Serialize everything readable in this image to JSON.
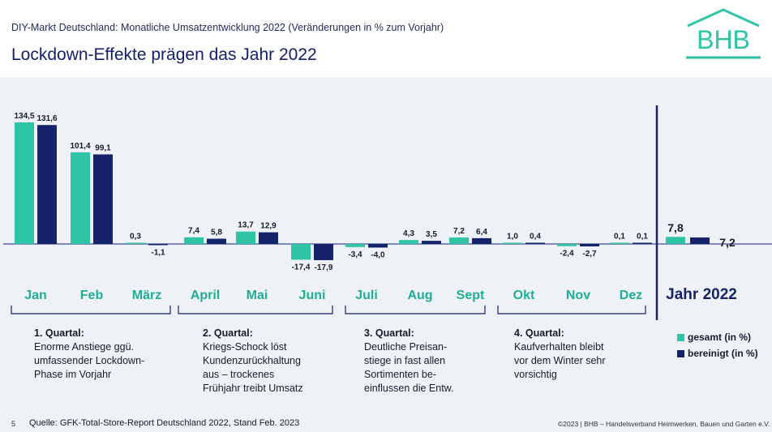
{
  "header": {
    "subtitle": "DIY-Markt Deutschland: Monatliche Umsatzentwicklung 2022 (Veränderungen in % zum Vorjahr)",
    "title": "Lockdown-Effekte prägen das Jahr 2022",
    "logo_text": "BHB"
  },
  "colors": {
    "gesamt": "#2ec4a6",
    "bereinigt": "#14236a",
    "month_label": "#1fae94",
    "year_label": "#14236a",
    "divider": "#14236a"
  },
  "chart_data": {
    "type": "bar",
    "categories": [
      "Jan",
      "Feb",
      "März",
      "April",
      "Mai",
      "Juni",
      "Juli",
      "Aug",
      "Sept",
      "Okt",
      "Nov",
      "Dez"
    ],
    "series": [
      {
        "name": "gesamt (in %)",
        "values": [
          134.5,
          101.4,
          0.3,
          7.4,
          13.7,
          -17.4,
          -3.4,
          4.3,
          7.2,
          1.0,
          -2.4,
          0.1
        ]
      },
      {
        "name": "bereinigt (in %)",
        "values": [
          131.6,
          99.1,
          -1.1,
          5.8,
          12.9,
          -17.9,
          -4.0,
          3.5,
          6.4,
          0.4,
          -2.7,
          0.1
        ]
      }
    ],
    "value_labels": {
      "gesamt": [
        "134,5",
        "101,4",
        "0,3",
        "7,4",
        "13,7",
        "-17,4",
        "-3,4",
        "4,3",
        "7,2",
        "1,0",
        "-2,4",
        "0,1"
      ],
      "bereinigt": [
        "131,6",
        "99,1",
        "-1,1",
        "5,8",
        "12,9",
        "-17,9",
        "-4,0",
        "3,5",
        "6,4",
        "0,4",
        "-2,7",
        "0,1"
      ]
    },
    "year": {
      "label": "Jahr 2022",
      "values": [
        7.8,
        7.2
      ],
      "value_labels": [
        "7,8",
        "7,2"
      ]
    },
    "legend": [
      "gesamt (in %)",
      "bereinigt (in %)"
    ],
    "legend_position": "right",
    "grid": false,
    "xlabel": "",
    "ylabel": ""
  },
  "quarters": [
    {
      "heading": "1. Quartal:",
      "lines": [
        "Enorme Anstiege ggü.",
        "umfassender Lockdown-",
        "Phase im Vorjahr"
      ]
    },
    {
      "heading": "2. Quartal:",
      "lines": [
        "Kriegs-Schock löst",
        "Kundenzurückhaltung",
        "aus – trockenes",
        "Frühjahr treibt Umsatz"
      ]
    },
    {
      "heading": "3. Quartal:",
      "lines": [
        "Deutliche Preisan-",
        "stiege in fast allen",
        "Sortimenten be-",
        "einflussen die Entw."
      ]
    },
    {
      "heading": "4. Quartal:",
      "lines": [
        "Kaufverhalten bleibt",
        "vor dem Winter sehr",
        "vorsichtig"
      ]
    }
  ],
  "footer": {
    "page_number": "5",
    "source": "Quelle: GFK-Total-Store-Report Deutschland 2022, Stand Feb. 2023",
    "copyright": "©2023 | BHB – Handelsverband Heimwerken, Bauen und Garten e.V."
  }
}
